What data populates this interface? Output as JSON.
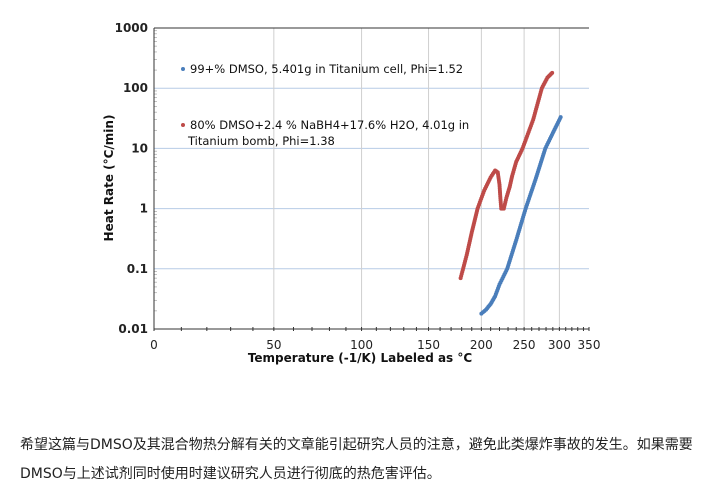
{
  "chart_data": {
    "type": "scatter",
    "xlabel": "Temperature (-1/K) Labeled as °C",
    "ylabel": "Heat Rate (°C/min)",
    "x_scale": "reciprocal (-1/K), labeled in °C",
    "y_scale": "log",
    "xlim": [
      0,
      350
    ],
    "ylim": [
      0.01,
      1000
    ],
    "x_ticks": [
      "0",
      "50",
      "100",
      "150",
      "200",
      "250",
      "300",
      "350"
    ],
    "y_ticks": [
      "0.01",
      "0.1",
      "1",
      "10",
      "100",
      "1000"
    ],
    "grid": true,
    "legend_position": "top-left",
    "series": [
      {
        "name": "99+% DMSO, 5.401g in Titanium cell, Phi=1.52",
        "color": "#4a7ebb",
        "points": [
          [
            200,
            0.018
          ],
          [
            205,
            0.021
          ],
          [
            210,
            0.026
          ],
          [
            215,
            0.035
          ],
          [
            220,
            0.055
          ],
          [
            229,
            0.1
          ],
          [
            240,
            0.3
          ],
          [
            252,
            1
          ],
          [
            265,
            3
          ],
          [
            279,
            10
          ],
          [
            290,
            18
          ],
          [
            302,
            33
          ]
        ]
      },
      {
        "name": "80% DMSO+2.4 % NaBH4+17.6% H2O, 4.01g in Titanium bomb, Phi=1.38",
        "name_line1": "80% DMSO+2.4 % NaBH4+17.6% H2O, 4.01g in",
        "name_line2": "Titanium bomb, Phi=1.38",
        "color": "#be4b48",
        "points": [
          [
            179,
            0.07
          ],
          [
            185,
            0.17
          ],
          [
            190,
            0.4
          ],
          [
            196,
            1.0
          ],
          [
            203,
            2.0
          ],
          [
            210,
            3.3
          ],
          [
            215,
            4.3
          ],
          [
            218,
            4.0
          ],
          [
            220,
            2.5
          ],
          [
            221,
            1.5
          ],
          [
            222,
            1.0
          ],
          [
            225,
            1.0
          ],
          [
            228,
            1.5
          ],
          [
            232,
            2.3
          ],
          [
            235,
            3.5
          ],
          [
            240,
            6
          ],
          [
            248,
            10
          ],
          [
            262,
            30
          ],
          [
            274,
            100
          ],
          [
            282,
            150
          ],
          [
            289,
            180
          ]
        ]
      }
    ]
  },
  "article": {
    "paragraph": "希望这篇与DMSO及其混合物热分解有关的文章能引起研究人员的注意，避免此类爆炸事故的发生。如果需要DMSO与上述试剂同时使用时建议研究人员进行彻底的热危害评估。"
  }
}
